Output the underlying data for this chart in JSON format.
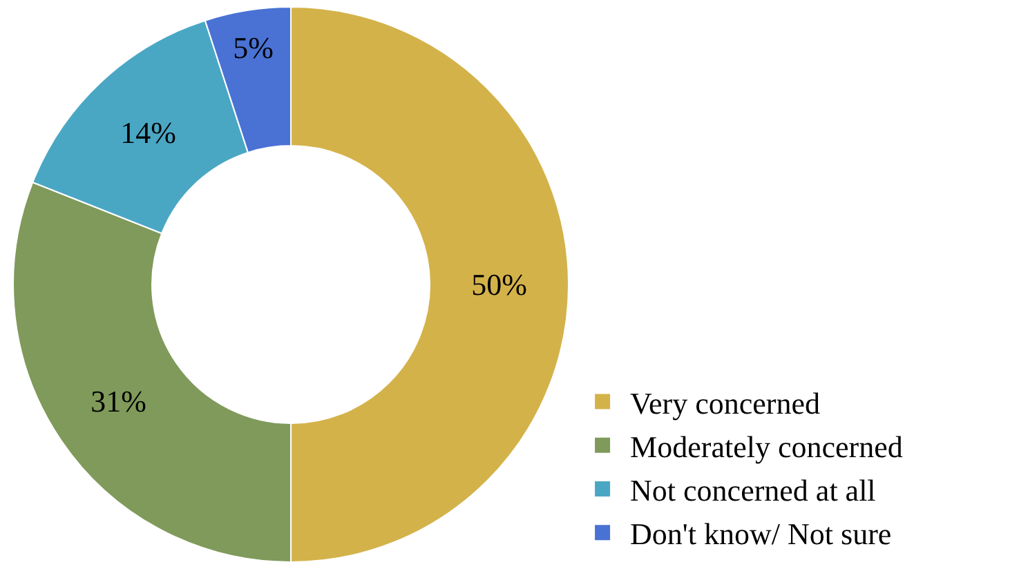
{
  "chart_data": {
    "type": "donut",
    "categories": [
      "Very concerned",
      "Moderately concerned",
      "Not concerned at all",
      "Don't know/ Not sure"
    ],
    "values": [
      50,
      31,
      14,
      5
    ],
    "value_labels": [
      "50%",
      "31%",
      "14%",
      "5%"
    ],
    "colors": [
      "#d4b24a",
      "#7f9a5a",
      "#4aa7c4",
      "#4a72d4"
    ],
    "legend": "bottom right"
  }
}
